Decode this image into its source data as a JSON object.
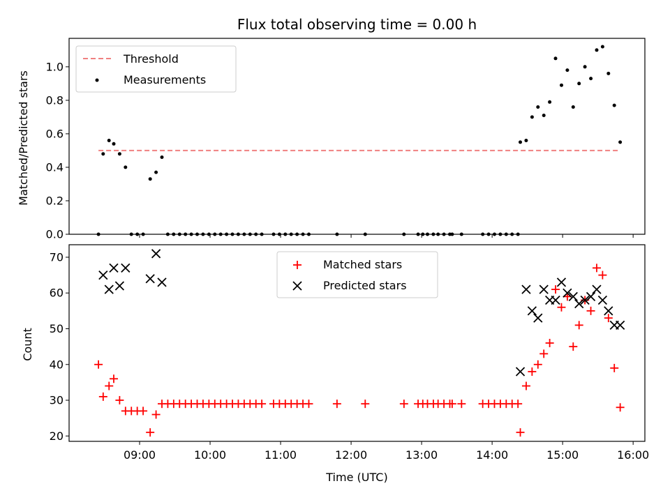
{
  "title": "Flux total observing time = 0.00 h",
  "chart_data": [
    {
      "type": "scatter",
      "ylabel": "Matched/Predicted stars",
      "ylim": [
        0,
        1.17
      ],
      "yticks": [
        0.0,
        0.2,
        0.4,
        0.6,
        0.8,
        1.0
      ],
      "ytick_labels": [
        "0.0",
        "0.2",
        "0.4",
        "0.6",
        "0.8",
        "1.0"
      ],
      "legend_position": "top-left",
      "legend": [
        "Threshold",
        "Measurements"
      ],
      "threshold": {
        "name": "Threshold",
        "value": 0.5,
        "x_start": "08:25",
        "x_end": "15:48",
        "color": "#f08080",
        "style": "dashed"
      },
      "series": [
        {
          "name": "Measurements",
          "color": "#000000",
          "marker": "dot",
          "points": [
            [
              "08:25",
              0.0
            ],
            [
              "08:29",
              0.48
            ],
            [
              "08:34",
              0.56
            ],
            [
              "08:38",
              0.54
            ],
            [
              "08:43",
              0.48
            ],
            [
              "08:48",
              0.4
            ],
            [
              "08:53",
              0.0
            ],
            [
              "08:58",
              0.0
            ],
            [
              "09:03",
              0.0
            ],
            [
              "09:09",
              0.33
            ],
            [
              "09:14",
              0.37
            ],
            [
              "09:19",
              0.46
            ],
            [
              "09:24",
              0.0
            ],
            [
              "09:29",
              0.0
            ],
            [
              "09:34",
              0.0
            ],
            [
              "09:39",
              0.0
            ],
            [
              "09:44",
              0.0
            ],
            [
              "09:49",
              0.0
            ],
            [
              "09:54",
              0.0
            ],
            [
              "09:59",
              0.0
            ],
            [
              "10:04",
              0.0
            ],
            [
              "10:09",
              0.0
            ],
            [
              "10:14",
              0.0
            ],
            [
              "10:19",
              0.0
            ],
            [
              "10:24",
              0.0
            ],
            [
              "10:29",
              0.0
            ],
            [
              "10:34",
              0.0
            ],
            [
              "10:39",
              0.0
            ],
            [
              "10:44",
              0.0
            ],
            [
              "10:54",
              0.0
            ],
            [
              "10:59",
              0.0
            ],
            [
              "11:04",
              0.0
            ],
            [
              "11:09",
              0.0
            ],
            [
              "11:14",
              0.0
            ],
            [
              "11:19",
              0.0
            ],
            [
              "11:24",
              0.0
            ],
            [
              "11:48",
              0.0
            ],
            [
              "12:12",
              0.0
            ],
            [
              "12:45",
              0.0
            ],
            [
              "12:57",
              0.0
            ],
            [
              "13:01",
              0.0
            ],
            [
              "13:05",
              0.0
            ],
            [
              "13:10",
              0.0
            ],
            [
              "13:14",
              0.0
            ],
            [
              "13:19",
              0.0
            ],
            [
              "13:24",
              0.0
            ],
            [
              "13:26",
              0.0
            ],
            [
              "13:34",
              0.0
            ],
            [
              "13:52",
              0.0
            ],
            [
              "13:57",
              0.0
            ],
            [
              "14:02",
              0.0
            ],
            [
              "14:07",
              0.0
            ],
            [
              "14:12",
              0.0
            ],
            [
              "14:17",
              0.0
            ],
            [
              "14:22",
              0.0
            ],
            [
              "14:24",
              0.55
            ],
            [
              "14:29",
              0.56
            ],
            [
              "14:34",
              0.7
            ],
            [
              "14:39",
              0.76
            ],
            [
              "14:44",
              0.71
            ],
            [
              "14:49",
              0.79
            ],
            [
              "14:54",
              1.05
            ],
            [
              "14:59",
              0.89
            ],
            [
              "15:04",
              0.98
            ],
            [
              "15:09",
              0.76
            ],
            [
              "15:14",
              0.9
            ],
            [
              "15:19",
              1.0
            ],
            [
              "15:24",
              0.93
            ],
            [
              "15:29",
              1.1
            ],
            [
              "15:34",
              1.12
            ],
            [
              "15:39",
              0.96
            ],
            [
              "15:44",
              0.77
            ],
            [
              "15:49",
              0.55
            ]
          ]
        }
      ]
    },
    {
      "type": "scatter",
      "xlabel": "Time (UTC)",
      "ylabel": "Count",
      "xlim": [
        "08:00",
        "16:10"
      ],
      "xticks": [
        "09:00",
        "10:00",
        "11:00",
        "12:00",
        "13:00",
        "14:00",
        "15:00",
        "16:00"
      ],
      "ylim": [
        18.5,
        73.5
      ],
      "yticks": [
        20,
        30,
        40,
        50,
        60,
        70
      ],
      "ytick_labels": [
        "20",
        "30",
        "40",
        "50",
        "60",
        "70"
      ],
      "legend_position": "top-center",
      "legend": [
        "Matched stars",
        "Predicted stars"
      ],
      "series": [
        {
          "name": "Matched stars",
          "color": "#ff0000",
          "marker": "plus",
          "points": [
            [
              "08:25",
              40
            ],
            [
              "08:29",
              31
            ],
            [
              "08:34",
              34
            ],
            [
              "08:38",
              36
            ],
            [
              "08:43",
              30
            ],
            [
              "08:48",
              27
            ],
            [
              "08:53",
              27
            ],
            [
              "08:58",
              27
            ],
            [
              "09:03",
              27
            ],
            [
              "09:09",
              21
            ],
            [
              "09:14",
              26
            ],
            [
              "09:19",
              29
            ],
            [
              "09:24",
              29
            ],
            [
              "09:29",
              29
            ],
            [
              "09:34",
              29
            ],
            [
              "09:39",
              29
            ],
            [
              "09:44",
              29
            ],
            [
              "09:49",
              29
            ],
            [
              "09:54",
              29
            ],
            [
              "09:59",
              29
            ],
            [
              "10:04",
              29
            ],
            [
              "10:09",
              29
            ],
            [
              "10:14",
              29
            ],
            [
              "10:19",
              29
            ],
            [
              "10:24",
              29
            ],
            [
              "10:29",
              29
            ],
            [
              "10:34",
              29
            ],
            [
              "10:39",
              29
            ],
            [
              "10:44",
              29
            ],
            [
              "10:54",
              29
            ],
            [
              "10:59",
              29
            ],
            [
              "11:04",
              29
            ],
            [
              "11:09",
              29
            ],
            [
              "11:14",
              29
            ],
            [
              "11:19",
              29
            ],
            [
              "11:24",
              29
            ],
            [
              "11:48",
              29
            ],
            [
              "12:12",
              29
            ],
            [
              "12:45",
              29
            ],
            [
              "12:57",
              29
            ],
            [
              "13:01",
              29
            ],
            [
              "13:05",
              29
            ],
            [
              "13:10",
              29
            ],
            [
              "13:14",
              29
            ],
            [
              "13:19",
              29
            ],
            [
              "13:24",
              29
            ],
            [
              "13:26",
              29
            ],
            [
              "13:34",
              29
            ],
            [
              "13:52",
              29
            ],
            [
              "13:57",
              29
            ],
            [
              "14:02",
              29
            ],
            [
              "14:07",
              29
            ],
            [
              "14:12",
              29
            ],
            [
              "14:17",
              29
            ],
            [
              "14:22",
              29
            ],
            [
              "14:24",
              21
            ],
            [
              "14:29",
              34
            ],
            [
              "14:34",
              38
            ],
            [
              "14:39",
              40
            ],
            [
              "14:44",
              43
            ],
            [
              "14:49",
              46
            ],
            [
              "14:54",
              61
            ],
            [
              "14:59",
              56
            ],
            [
              "15:04",
              59
            ],
            [
              "15:09",
              45
            ],
            [
              "15:14",
              51
            ],
            [
              "15:19",
              58
            ],
            [
              "15:24",
              55
            ],
            [
              "15:29",
              67
            ],
            [
              "15:34",
              65
            ],
            [
              "15:39",
              53
            ],
            [
              "15:44",
              39
            ],
            [
              "15:49",
              28
            ]
          ]
        },
        {
          "name": "Predicted stars",
          "color": "#000000",
          "marker": "x",
          "points": [
            [
              "08:29",
              65
            ],
            [
              "08:34",
              61
            ],
            [
              "08:38",
              67
            ],
            [
              "08:43",
              62
            ],
            [
              "08:48",
              67
            ],
            [
              "09:09",
              64
            ],
            [
              "09:14",
              71
            ],
            [
              "09:19",
              63
            ],
            [
              "14:24",
              38
            ],
            [
              "14:29",
              61
            ],
            [
              "14:34",
              55
            ],
            [
              "14:39",
              53
            ],
            [
              "14:44",
              61
            ],
            [
              "14:49",
              58
            ],
            [
              "14:54",
              58
            ],
            [
              "14:59",
              63
            ],
            [
              "15:04",
              60
            ],
            [
              "15:09",
              59
            ],
            [
              "15:14",
              57
            ],
            [
              "15:19",
              58
            ],
            [
              "15:24",
              59
            ],
            [
              "15:29",
              61
            ],
            [
              "15:34",
              58
            ],
            [
              "15:39",
              55
            ],
            [
              "15:44",
              51
            ],
            [
              "15:49",
              51
            ]
          ]
        }
      ]
    }
  ]
}
